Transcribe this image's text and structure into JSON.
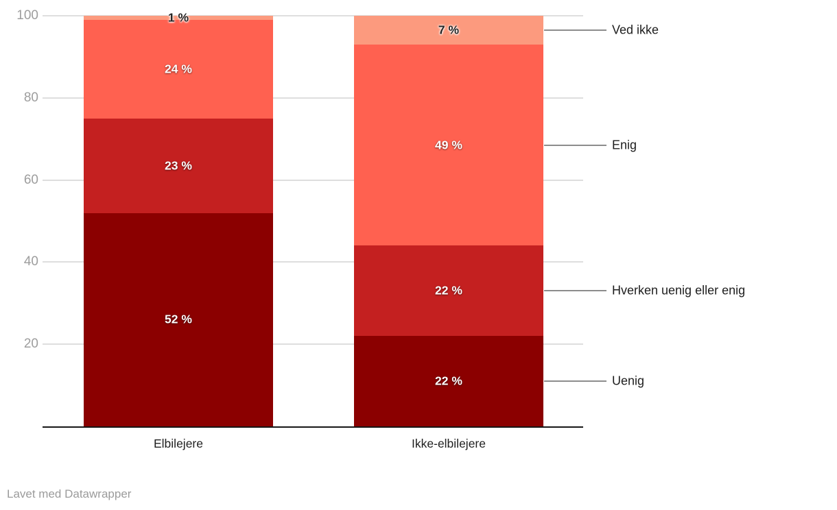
{
  "chart": {
    "footer": "Lavet med Datawrapper"
  },
  "chart_data": {
    "type": "bar",
    "stacked": true,
    "unit": "%",
    "title": "",
    "xlabel": "",
    "ylabel": "",
    "categories": [
      "Elbilejere",
      "Ikke-elbilejere"
    ],
    "series": [
      {
        "name": "Uenig",
        "values": [
          52,
          22
        ],
        "color": "#8B0000",
        "label_style": "light"
      },
      {
        "name": "Hverken uenig eller enig",
        "values": [
          23,
          22
        ],
        "color": "#C42020",
        "label_style": "light"
      },
      {
        "name": "Enig",
        "values": [
          24,
          49
        ],
        "color": "#FF6150",
        "label_style": "light"
      },
      {
        "name": "Ved ikke",
        "values": [
          1,
          7
        ],
        "color": "#FC9A7E",
        "label_style": "dark"
      }
    ],
    "value_label_format": "{v} %",
    "yticks": [
      20,
      40,
      60,
      80,
      100
    ],
    "ylim": [
      0,
      100
    ],
    "grid": true,
    "legend_position": "right",
    "legend_order": [
      "Ved ikke",
      "Enig",
      "Hverken uenig eller enig",
      "Uenig"
    ],
    "colors": {
      "gridline": "#dedede",
      "axis_line": "#161616",
      "tick_label": "#9d9d9d",
      "category_label": "#1f1f1f",
      "legend_label": "#1d1d1d",
      "leader_line": "#8c8c8c",
      "footer": "#9b9b9b"
    }
  }
}
